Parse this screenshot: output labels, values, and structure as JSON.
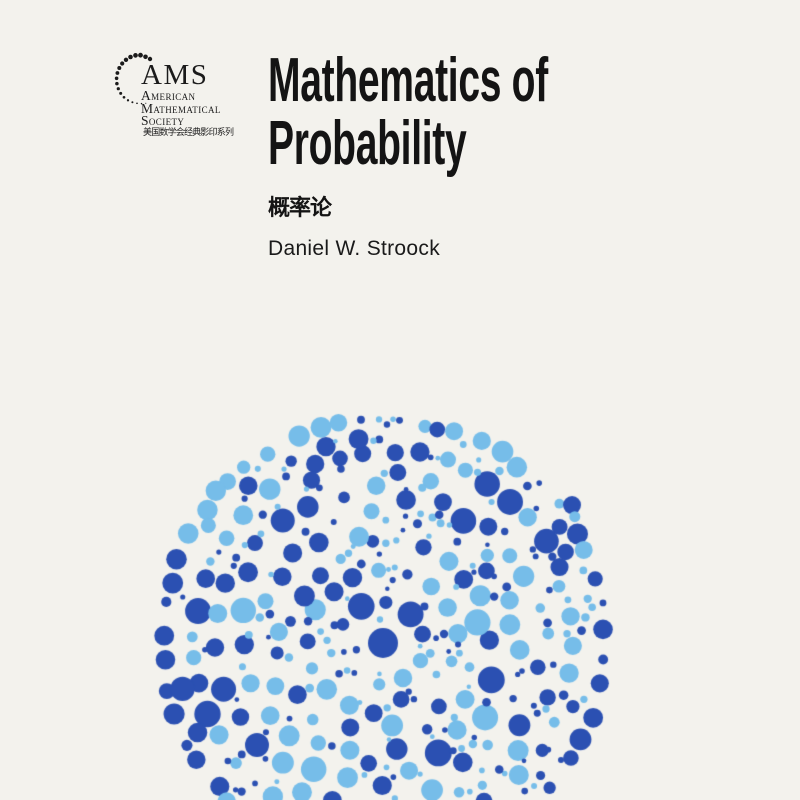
{
  "page": {
    "background": "#f3f2ed"
  },
  "publisher": {
    "acronym": "AMS",
    "name_lines": [
      "American",
      "Mathematical",
      "Society"
    ],
    "series_zh": "美国数学会经典影印系列",
    "logo_color": "#1b1b1b"
  },
  "book": {
    "title_lines": [
      "Mathematics of",
      "Probability"
    ],
    "title_zh": "概率论",
    "author": "Daniel W. Stroock"
  },
  "artwork": {
    "dot_dark": "#2b50b2",
    "dot_light": "#76bde9"
  }
}
